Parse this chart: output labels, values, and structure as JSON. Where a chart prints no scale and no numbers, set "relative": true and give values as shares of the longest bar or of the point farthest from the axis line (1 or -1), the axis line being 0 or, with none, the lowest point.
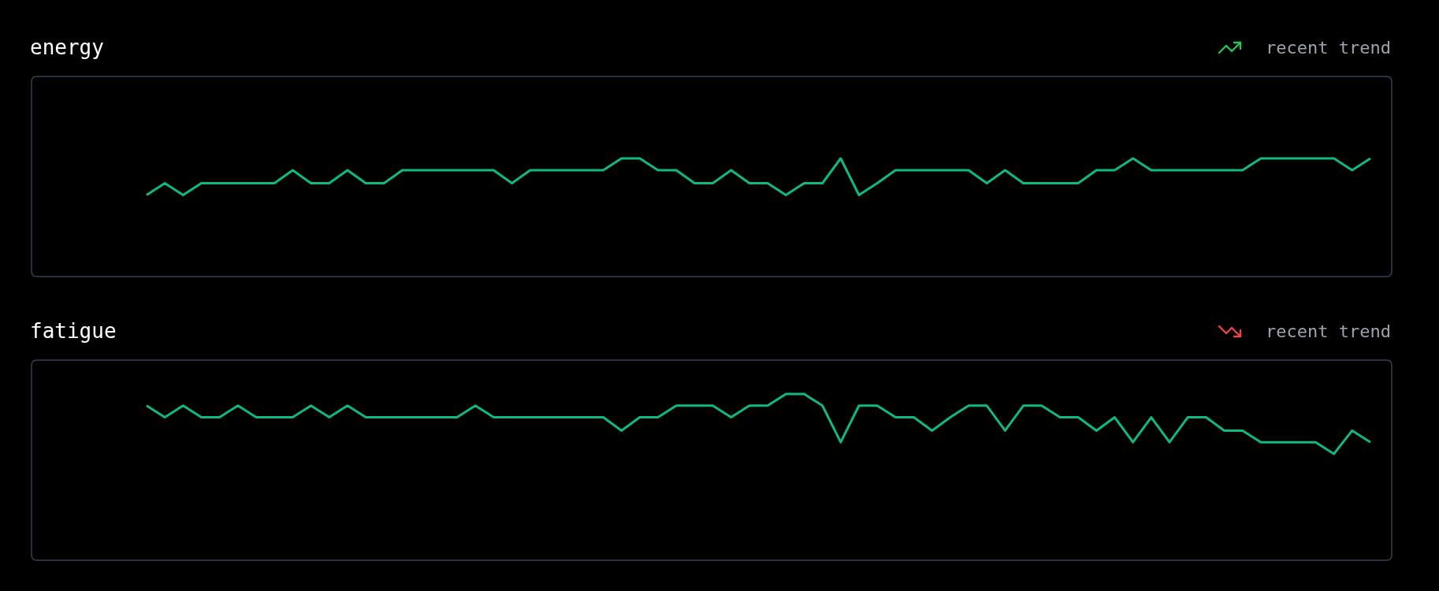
{
  "chart_data": [
    {
      "type": "line",
      "title": "energy",
      "annotations": [
        "recent trend"
      ],
      "relative": true,
      "categories": [
        null,
        null,
        null,
        null,
        null,
        null,
        null,
        null,
        null,
        null,
        null,
        null,
        null,
        null,
        null,
        null,
        null,
        null,
        null,
        null,
        null,
        null,
        null,
        null,
        null,
        null,
        null,
        null,
        null,
        null,
        null,
        null,
        null,
        null,
        null,
        null,
        null,
        null,
        null,
        null,
        null,
        null,
        null,
        null,
        null,
        null,
        null,
        null,
        null,
        null,
        null,
        null,
        null,
        null,
        null,
        null,
        null,
        null,
        null,
        null,
        null,
        null,
        null,
        null,
        null,
        null,
        null,
        null
      ],
      "series": [
        {
          "color": "#10b981",
          "values": [
            0.69,
            0.79,
            0.69,
            0.79,
            0.79,
            0.79,
            0.79,
            0.79,
            0.9,
            0.79,
            0.79,
            0.9,
            0.79,
            0.79,
            0.9,
            0.9,
            0.9,
            0.9,
            0.9,
            0.9,
            0.79,
            0.9,
            0.9,
            0.9,
            0.9,
            0.9,
            1,
            1,
            0.9,
            0.9,
            0.79,
            0.79,
            0.9,
            0.79,
            0.79,
            0.69,
            0.79,
            0.79,
            1,
            0.69,
            0.79,
            0.9,
            0.9,
            0.9,
            0.9,
            0.9,
            0.79,
            0.9,
            0.79,
            0.79,
            0.79,
            0.79,
            0.9,
            0.9,
            1,
            0.9,
            0.9,
            0.9,
            0.9,
            0.9,
            0.9,
            1,
            1,
            1,
            1,
            1,
            0.9,
            1
          ]
        }
      ]
    },
    {
      "type": "line",
      "title": "fatigue",
      "annotations": [
        "recent trend"
      ],
      "relative": true,
      "categories": [
        null,
        null,
        null,
        null,
        null,
        null,
        null,
        null,
        null,
        null,
        null,
        null,
        null,
        null,
        null,
        null,
        null,
        null,
        null,
        null,
        null,
        null,
        null,
        null,
        null,
        null,
        null,
        null,
        null,
        null,
        null,
        null,
        null,
        null,
        null,
        null,
        null,
        null,
        null,
        null,
        null,
        null,
        null,
        null,
        null,
        null,
        null,
        null,
        null,
        null,
        null,
        null,
        null,
        null,
        null,
        null,
        null,
        null,
        null,
        null,
        null,
        null,
        null,
        null,
        null,
        null,
        null,
        null
      ],
      "series": [
        {
          "color": "#10b981",
          "values": [
            0.93,
            0.86,
            0.93,
            0.86,
            0.86,
            0.93,
            0.86,
            0.86,
            0.86,
            0.93,
            0.86,
            0.93,
            0.86,
            0.86,
            0.86,
            0.86,
            0.86,
            0.86,
            0.93,
            0.86,
            0.86,
            0.86,
            0.86,
            0.86,
            0.86,
            0.86,
            0.78,
            0.86,
            0.86,
            0.93,
            0.93,
            0.93,
            0.86,
            0.93,
            0.93,
            1,
            1,
            0.93,
            0.71,
            0.93,
            0.93,
            0.86,
            0.86,
            0.78,
            0.86,
            0.93,
            0.93,
            0.78,
            0.93,
            0.93,
            0.86,
            0.86,
            0.78,
            0.86,
            0.71,
            0.86,
            0.71,
            0.86,
            0.86,
            0.78,
            0.78,
            0.71,
            0.71,
            0.71,
            0.71,
            0.64,
            0.78,
            0.71
          ]
        }
      ]
    }
  ]
}
